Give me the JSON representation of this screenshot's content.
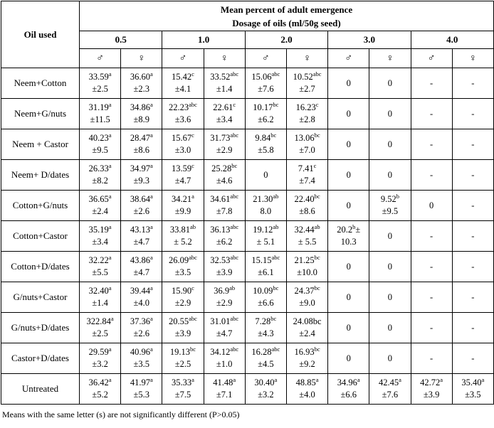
{
  "table": {
    "col1_header": "Oil used",
    "header_line1": "Mean percent of adult emergence",
    "header_line2": "Dosage of oils (ml/50g seed)",
    "dosages": [
      "0.5",
      "1.0",
      "2.0",
      "3.0",
      "4.0"
    ],
    "male_symbol": "♂",
    "female_symbol": "♀",
    "rows": [
      {
        "oil": "Neem+Cotton",
        "cells": [
          {
            "v": "33.59",
            "sup": "a",
            "err": "±2.5"
          },
          {
            "v": "36.60",
            "sup": "a",
            "err": "±2.3"
          },
          {
            "v": "15.42",
            "sup": "c",
            "err": "±4.1"
          },
          {
            "v": "33.52",
            "sup": "abc",
            "err": "±1.4"
          },
          {
            "v": "15.06",
            "sup": "abc",
            "err": "±7.6"
          },
          {
            "v": "10.52",
            "sup": "abc",
            "err": "±2.7"
          },
          {
            "v": "0"
          },
          {
            "v": "0"
          },
          {
            "v": "-"
          },
          {
            "v": "-"
          }
        ]
      },
      {
        "oil": "Neem+G/nuts",
        "cells": [
          {
            "v": "31.19",
            "sup": "a",
            "err": "±11.5"
          },
          {
            "v": "34.86",
            "sup": "a",
            "err": "±8.9"
          },
          {
            "v": "22.23",
            "sup": "abc",
            "err": "±3.6"
          },
          {
            "v": "22.61",
            "sup": "c",
            "err": "±3.4"
          },
          {
            "v": "10.17",
            "sup": "bc",
            "err": "±6.2"
          },
          {
            "v": "16.23",
            "sup": "c",
            "err": "±2.8"
          },
          {
            "v": "0"
          },
          {
            "v": "0"
          },
          {
            "v": "-"
          },
          {
            "v": "-"
          }
        ]
      },
      {
        "oil": "Neem + Castor",
        "cells": [
          {
            "v": "40.23",
            "sup": "a",
            "err": "±9.5"
          },
          {
            "v": "28.47",
            "sup": "a",
            "err": "±8.6"
          },
          {
            "v": "15.67",
            "sup": "c",
            "err": "±3.0"
          },
          {
            "v": "31.73",
            "sup": "abc",
            "err": "±2.9"
          },
          {
            "v": "9.84",
            "sup": "bc",
            "err": "±5.8"
          },
          {
            "v": "13.06",
            "sup": "bc",
            "err": "±7.0"
          },
          {
            "v": "0"
          },
          {
            "v": "0"
          },
          {
            "v": "-"
          },
          {
            "v": "-"
          }
        ]
      },
      {
        "oil": "Neem+ D/dates",
        "cells": [
          {
            "v": "26.33",
            "sup": "a",
            "err": "±8.2"
          },
          {
            "v": "34.97",
            "sup": "a",
            "err": "±9.3"
          },
          {
            "v": "13.59",
            "sup": "c",
            "err": "±4.7"
          },
          {
            "v": "25.28",
            "sup": "bc",
            "err": "±4.6"
          },
          {
            "v": "0"
          },
          {
            "v": "7.41",
            "sup": "c",
            "err": "±7.4"
          },
          {
            "v": "0"
          },
          {
            "v": "0"
          },
          {
            "v": "-"
          },
          {
            "v": "-"
          }
        ]
      },
      {
        "oil": "Cotton+G/nuts",
        "cells": [
          {
            "v": "36.65",
            "sup": "a",
            "err": "±2.4"
          },
          {
            "v": "38.64",
            "sup": "a",
            "err": "±2.6"
          },
          {
            "v": "34.21",
            "sup": "a",
            "err": "±9.9"
          },
          {
            "v": "34.61",
            "sup": "abc",
            "err": "±7.8"
          },
          {
            "v": "21.30",
            "sup": "ab",
            "err": "8.0"
          },
          {
            "v": "22.40",
            "sup": "bc",
            "err": "±8.6"
          },
          {
            "v": "0"
          },
          {
            "v": "9.52",
            "sup": "b",
            "err": "±9.5"
          },
          {
            "v": "0"
          },
          {
            "v": "-"
          }
        ]
      },
      {
        "oil": "Cotton+Castor",
        "cells": [
          {
            "v": "35.19",
            "sup": "a",
            "err": "±3.4"
          },
          {
            "v": "43.13",
            "sup": "a",
            "err": "±4.7"
          },
          {
            "v": "33.81",
            "sup": "ab",
            "err": "± 5.2"
          },
          {
            "v": "36.13",
            "sup": "abc",
            "err": "±6.2"
          },
          {
            "v": "19.12",
            "sup": "ab",
            "err": "± 5.1"
          },
          {
            "v": "32.44",
            "sup": "ab",
            "err": "± 5.5"
          },
          {
            "v": "20.2",
            "sup": "b",
            "tail": "±",
            "err": "10.3"
          },
          {
            "v": "0"
          },
          {
            "v": "-"
          },
          {
            "v": "-"
          }
        ]
      },
      {
        "oil": "Cotton+D/dates",
        "cells": [
          {
            "v": "32.22",
            "sup": "a",
            "err": "±5.5"
          },
          {
            "v": "43.86",
            "sup": "a",
            "err": "±4.7"
          },
          {
            "v": "26.09",
            "sup": "abc",
            "err": "±3.5"
          },
          {
            "v": "32.53",
            "sup": "abc",
            "err": "±3.9"
          },
          {
            "v": "15.15",
            "sup": "abc",
            "err": "±6.1"
          },
          {
            "v": "21.25",
            "sup": "bc",
            "err": "±10.0"
          },
          {
            "v": "0"
          },
          {
            "v": "0"
          },
          {
            "v": "-"
          },
          {
            "v": "-"
          }
        ]
      },
      {
        "oil": "G/nuts+Castor",
        "cells": [
          {
            "v": "32.40",
            "sup": "a",
            "err": "±1.4"
          },
          {
            "v": "39.44",
            "sup": "a",
            "err": "±4.0"
          },
          {
            "v": "15.90",
            "sup": "c",
            "err": "±2.9"
          },
          {
            "v": "36.9",
            "sup": "ab",
            "err": "±2.9"
          },
          {
            "v": "10.09",
            "sup": "bc",
            "err": "±6.6"
          },
          {
            "v": "24.37",
            "sup": "bc",
            "err": "±9.0"
          },
          {
            "v": "0"
          },
          {
            "v": "0"
          },
          {
            "v": "-"
          },
          {
            "v": "-"
          }
        ]
      },
      {
        "oil": "G/nuts+D/dates",
        "cells": [
          {
            "v": "322.84",
            "sup": "a",
            "err": "±2.5"
          },
          {
            "v": "37.36",
            "sup": "a",
            "err": "±2.6"
          },
          {
            "v": "20.55",
            "sup": "abc",
            "err": "±3.9"
          },
          {
            "v": "31.01",
            "sup": "abc",
            "err": "±4.7"
          },
          {
            "v": "7.28",
            "sup": "bc",
            "err": "±4.3"
          },
          {
            "v": "24.08bc",
            "err": "±2.4"
          },
          {
            "v": "0"
          },
          {
            "v": "0"
          },
          {
            "v": "-"
          },
          {
            "v": "-"
          }
        ]
      },
      {
        "oil": "Castor+D/dates",
        "cells": [
          {
            "v": "29.59",
            "sup": "a",
            "err": "±3.2"
          },
          {
            "v": "40.96",
            "sup": "a",
            "err": "±3.5"
          },
          {
            "v": "19.13",
            "sup": "bc",
            "err": "±2.5"
          },
          {
            "v": "34.12",
            "sup": "abc",
            "err": "±1.0"
          },
          {
            "v": "16.28",
            "sup": "abc",
            "err": "±4.5"
          },
          {
            "v": "16.93",
            "sup": "bc",
            "err": "±9.2"
          },
          {
            "v": "0"
          },
          {
            "v": "0"
          },
          {
            "v": "-"
          },
          {
            "v": "-"
          }
        ]
      },
      {
        "oil": "Untreated",
        "cells": [
          {
            "v": "36.42",
            "sup": "a",
            "err": "±5.2"
          },
          {
            "v": "41.97",
            "sup": "a",
            "err": "±5.3"
          },
          {
            "v": "35.33",
            "sup": "a",
            "err": "±7.5"
          },
          {
            "v": "41.48",
            "sup": "a",
            "err": "±7.1"
          },
          {
            "v": "30.40",
            "sup": "a",
            "err": "±3.2"
          },
          {
            "v": "48.85",
            "sup": "a",
            "err": "±4.0"
          },
          {
            "v": "34.96",
            "sup": "a",
            "err": "±6.6"
          },
          {
            "v": "42.45",
            "sup": "a",
            "err": "±7.6"
          },
          {
            "v": "42.72",
            "sup": "a",
            "err": "±3.9"
          },
          {
            "v": "35.40",
            "sup": "a",
            "err": "±3.5"
          }
        ]
      }
    ]
  },
  "footnote": "Means with the same letter (s) are not significantly different (P>0.05)"
}
